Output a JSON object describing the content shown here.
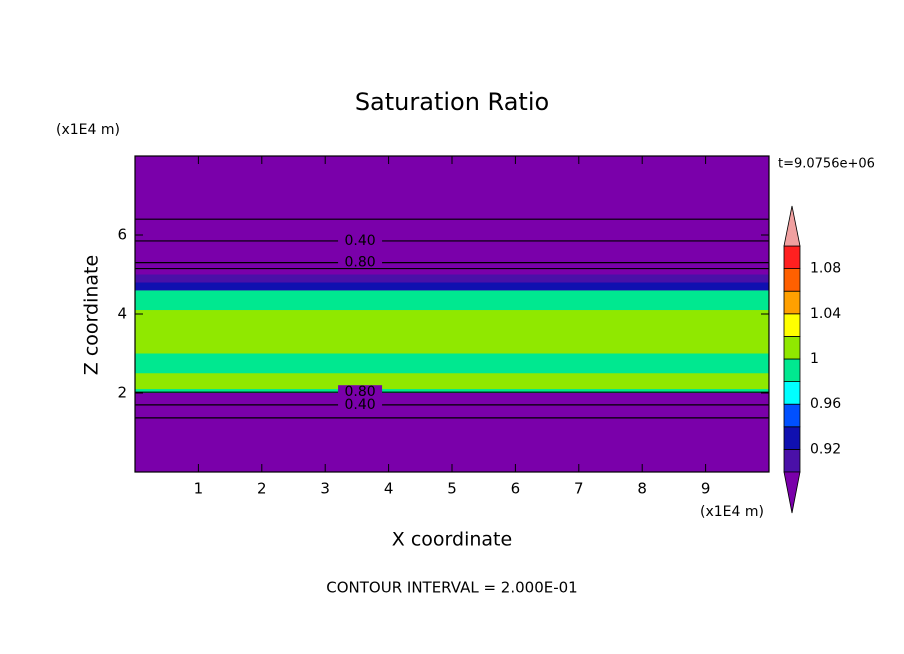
{
  "chart_data": {
    "type": "contour",
    "title": "Saturation Ratio",
    "xlabel": "X coordinate",
    "ylabel": "Z coordinate",
    "x_unit": "(x1E4 m)",
    "y_unit": "(x1E4 m)",
    "time_label": "t=9.0756e+06",
    "footer": "CONTOUR INTERVAL = 2.000E-01",
    "xlim": [
      0,
      10
    ],
    "ylim": [
      0,
      8
    ],
    "xticks": [
      1,
      2,
      3,
      4,
      5,
      6,
      7,
      8,
      9
    ],
    "yticks": [
      2,
      4,
      6
    ],
    "levels": [
      0.9,
      0.92,
      0.94,
      0.96,
      0.98,
      1,
      1.02,
      1.04,
      1.06,
      1.08,
      1.1
    ],
    "level_colors": [
      "#4a10a8",
      "#1010b0",
      "#0050ff",
      "#00ffff",
      "#00e890",
      "#90e800",
      "#ffff00",
      "#ffa000",
      "#ff6000",
      "#ff2020"
    ],
    "under_color": "#7a00aa",
    "over_color": "#f0a0a0",
    "colorbar_ticks": [
      0.92,
      0.96,
      1,
      1.04,
      1.08
    ],
    "layers": [
      {
        "z": [
          0,
          8
        ],
        "value": 0.5
      },
      {
        "z": [
          2.0,
          4.6
        ],
        "value": 0.99
      },
      {
        "z": [
          2.1,
          2.5
        ],
        "value": 1.01
      },
      {
        "z": [
          3.0,
          4.1
        ],
        "value": 1.01
      },
      {
        "z": [
          4.6,
          4.8
        ],
        "value": 0.93
      },
      {
        "z": [
          4.8,
          5.0
        ],
        "value": 0.91
      }
    ],
    "contours": [
      {
        "z": 6.4
      },
      {
        "z": 5.85,
        "x": 3.55,
        "label": "0.40"
      },
      {
        "z": 5.3,
        "x": 3.55,
        "label": "0.80"
      },
      {
        "z": 5.15
      },
      {
        "z": 2.02,
        "x": 3.55,
        "label": "0.80"
      },
      {
        "z": 1.7,
        "x": 3.55,
        "label": "0.40"
      },
      {
        "z": 1.37
      }
    ]
  }
}
